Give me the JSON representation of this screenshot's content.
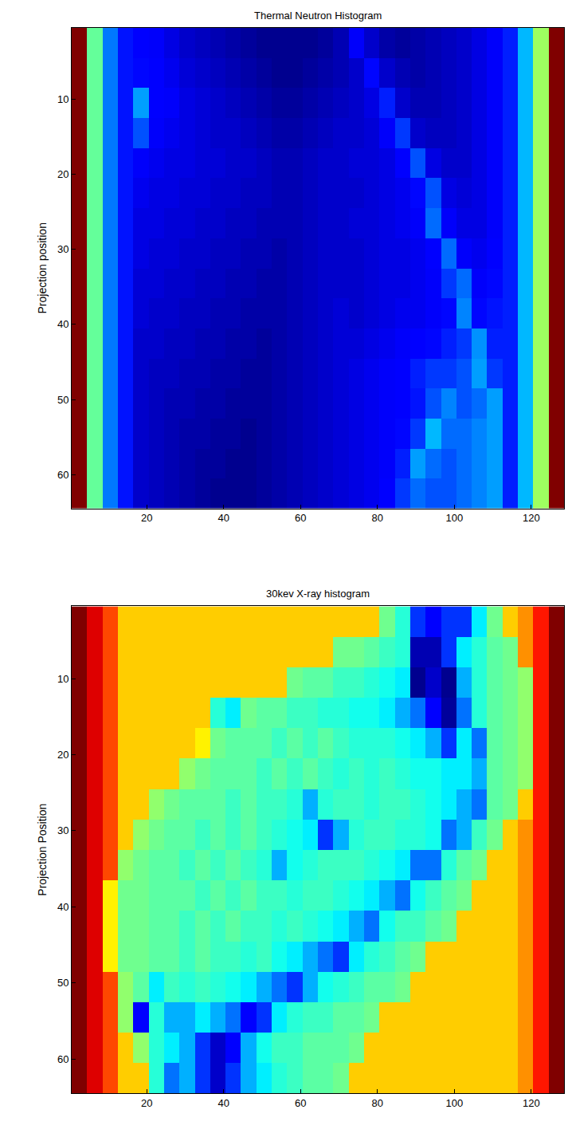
{
  "chart_data": [
    {
      "type": "heatmap",
      "title": "Thermal Neutron Histogram",
      "y_label": "Projection position",
      "color": "jet",
      "xlim": [
        0.5,
        128.5
      ],
      "xticks": [
        20,
        40,
        60,
        80,
        100,
        120
      ],
      "ylim": [
        64.5,
        0.5
      ],
      "yticks": [
        10,
        20,
        30,
        40,
        50,
        60
      ],
      "grid": false,
      "x": [
        2.5,
        6.5,
        10.5,
        14.5,
        18.5,
        22.5,
        26.5,
        30.5,
        34.5,
        38.5,
        42.5,
        46.5,
        50.5,
        54.5,
        58.5,
        62.5,
        66.5,
        70.5,
        74.5,
        78.5,
        82.5,
        86.5,
        90.5,
        94.5,
        98.5,
        102.5,
        106.5,
        110.5,
        114.5,
        118.5,
        122.5,
        126.5
      ],
      "y": [
        2.5,
        6.5,
        10.5,
        14.5,
        18.5,
        22.5,
        26.5,
        30.5,
        34.5,
        38.5,
        42.5,
        46.5,
        50.5,
        54.5,
        58.5,
        62.5
      ],
      "cells": [
        [
          0.9,
          0.45,
          0.25,
          0.17,
          0.15,
          0.14,
          0.12,
          0.1,
          0.09,
          0.08,
          0.07,
          0.06,
          0.05,
          0.05,
          0.05,
          0.05,
          0.06,
          0.08,
          0.14,
          0.1,
          0.07,
          0.06,
          0.07,
          0.08,
          0.09,
          0.1,
          0.12,
          0.14,
          0.18,
          0.3,
          0.5,
          0.9
        ],
        [
          0.9,
          0.45,
          0.25,
          0.17,
          0.16,
          0.15,
          0.13,
          0.11,
          0.1,
          0.09,
          0.08,
          0.07,
          0.06,
          0.05,
          0.05,
          0.06,
          0.07,
          0.08,
          0.1,
          0.16,
          0.1,
          0.08,
          0.07,
          0.08,
          0.09,
          0.1,
          0.12,
          0.14,
          0.18,
          0.3,
          0.5,
          0.9
        ],
        [
          0.9,
          0.45,
          0.25,
          0.17,
          0.28,
          0.15,
          0.14,
          0.12,
          0.11,
          0.1,
          0.09,
          0.08,
          0.07,
          0.06,
          0.06,
          0.07,
          0.08,
          0.09,
          0.1,
          0.12,
          0.18,
          0.1,
          0.08,
          0.08,
          0.09,
          0.1,
          0.12,
          0.14,
          0.18,
          0.3,
          0.5,
          0.9
        ],
        [
          0.9,
          0.45,
          0.25,
          0.17,
          0.22,
          0.14,
          0.13,
          0.12,
          0.11,
          0.1,
          0.1,
          0.09,
          0.08,
          0.07,
          0.07,
          0.08,
          0.09,
          0.1,
          0.1,
          0.11,
          0.14,
          0.2,
          0.1,
          0.09,
          0.09,
          0.1,
          0.12,
          0.14,
          0.18,
          0.3,
          0.5,
          0.9
        ],
        [
          0.9,
          0.45,
          0.25,
          0.17,
          0.14,
          0.13,
          0.12,
          0.12,
          0.11,
          0.11,
          0.1,
          0.1,
          0.09,
          0.08,
          0.08,
          0.09,
          0.1,
          0.1,
          0.11,
          0.11,
          0.12,
          0.15,
          0.22,
          0.12,
          0.1,
          0.1,
          0.12,
          0.14,
          0.18,
          0.3,
          0.5,
          0.9
        ],
        [
          0.9,
          0.45,
          0.25,
          0.17,
          0.13,
          0.12,
          0.12,
          0.11,
          0.11,
          0.1,
          0.1,
          0.09,
          0.09,
          0.08,
          0.08,
          0.09,
          0.1,
          0.1,
          0.1,
          0.11,
          0.12,
          0.13,
          0.16,
          0.22,
          0.12,
          0.11,
          0.12,
          0.14,
          0.18,
          0.3,
          0.5,
          0.9
        ],
        [
          0.9,
          0.45,
          0.25,
          0.17,
          0.12,
          0.12,
          0.11,
          0.11,
          0.1,
          0.1,
          0.09,
          0.09,
          0.08,
          0.08,
          0.08,
          0.09,
          0.1,
          0.1,
          0.11,
          0.11,
          0.12,
          0.13,
          0.14,
          0.24,
          0.14,
          0.12,
          0.12,
          0.14,
          0.18,
          0.3,
          0.5,
          0.9
        ],
        [
          0.9,
          0.45,
          0.25,
          0.17,
          0.12,
          0.11,
          0.11,
          0.1,
          0.1,
          0.09,
          0.09,
          0.08,
          0.08,
          0.07,
          0.08,
          0.09,
          0.1,
          0.1,
          0.1,
          0.11,
          0.12,
          0.12,
          0.13,
          0.15,
          0.24,
          0.14,
          0.13,
          0.15,
          0.18,
          0.3,
          0.5,
          0.9
        ],
        [
          0.9,
          0.45,
          0.25,
          0.17,
          0.11,
          0.11,
          0.1,
          0.1,
          0.09,
          0.09,
          0.08,
          0.08,
          0.07,
          0.07,
          0.08,
          0.09,
          0.1,
          0.1,
          0.1,
          0.11,
          0.12,
          0.12,
          0.13,
          0.14,
          0.2,
          0.24,
          0.14,
          0.16,
          0.18,
          0.3,
          0.5,
          0.9
        ],
        [
          0.9,
          0.45,
          0.25,
          0.17,
          0.11,
          0.1,
          0.1,
          0.09,
          0.09,
          0.08,
          0.08,
          0.07,
          0.07,
          0.07,
          0.08,
          0.09,
          0.1,
          0.11,
          0.1,
          0.11,
          0.12,
          0.13,
          0.13,
          0.14,
          0.16,
          0.26,
          0.16,
          0.17,
          0.18,
          0.3,
          0.5,
          0.9
        ],
        [
          0.9,
          0.45,
          0.25,
          0.17,
          0.1,
          0.1,
          0.09,
          0.09,
          0.08,
          0.08,
          0.07,
          0.07,
          0.06,
          0.07,
          0.08,
          0.09,
          0.1,
          0.11,
          0.11,
          0.12,
          0.13,
          0.14,
          0.15,
          0.16,
          0.18,
          0.2,
          0.27,
          0.18,
          0.18,
          0.3,
          0.5,
          0.9
        ],
        [
          0.9,
          0.45,
          0.25,
          0.17,
          0.1,
          0.09,
          0.09,
          0.08,
          0.08,
          0.07,
          0.07,
          0.06,
          0.06,
          0.07,
          0.08,
          0.09,
          0.1,
          0.11,
          0.12,
          0.13,
          0.14,
          0.15,
          0.18,
          0.2,
          0.2,
          0.22,
          0.28,
          0.2,
          0.18,
          0.3,
          0.5,
          0.9
        ],
        [
          0.9,
          0.45,
          0.25,
          0.17,
          0.1,
          0.09,
          0.08,
          0.08,
          0.07,
          0.07,
          0.06,
          0.06,
          0.06,
          0.07,
          0.08,
          0.09,
          0.1,
          0.11,
          0.12,
          0.13,
          0.14,
          0.15,
          0.17,
          0.22,
          0.26,
          0.22,
          0.24,
          0.28,
          0.18,
          0.3,
          0.5,
          0.9
        ],
        [
          0.9,
          0.45,
          0.25,
          0.17,
          0.1,
          0.09,
          0.08,
          0.07,
          0.07,
          0.06,
          0.06,
          0.05,
          0.06,
          0.07,
          0.08,
          0.09,
          0.1,
          0.11,
          0.12,
          0.13,
          0.14,
          0.16,
          0.2,
          0.3,
          0.24,
          0.24,
          0.26,
          0.28,
          0.18,
          0.3,
          0.5,
          0.9
        ],
        [
          0.9,
          0.45,
          0.25,
          0.17,
          0.1,
          0.09,
          0.08,
          0.07,
          0.06,
          0.06,
          0.05,
          0.05,
          0.06,
          0.07,
          0.08,
          0.09,
          0.1,
          0.11,
          0.12,
          0.13,
          0.14,
          0.18,
          0.28,
          0.24,
          0.22,
          0.24,
          0.26,
          0.28,
          0.18,
          0.3,
          0.5,
          0.9
        ],
        [
          0.9,
          0.45,
          0.25,
          0.17,
          0.1,
          0.09,
          0.08,
          0.07,
          0.06,
          0.05,
          0.05,
          0.05,
          0.06,
          0.07,
          0.08,
          0.09,
          0.1,
          0.11,
          0.12,
          0.13,
          0.15,
          0.2,
          0.24,
          0.22,
          0.22,
          0.24,
          0.26,
          0.28,
          0.18,
          0.3,
          0.5,
          0.9
        ]
      ]
    },
    {
      "type": "heatmap",
      "title": "30kev X-ray histogram",
      "y_label": "Projection Position",
      "color": "jet",
      "xlim": [
        0.5,
        128.5
      ],
      "xticks": [
        20,
        40,
        60,
        80,
        100,
        120
      ],
      "ylim": [
        64.5,
        0.5
      ],
      "yticks": [
        10,
        20,
        30,
        40,
        50,
        60
      ],
      "grid": false,
      "x": [
        2.5,
        6.5,
        10.5,
        14.5,
        18.5,
        22.5,
        26.5,
        30.5,
        34.5,
        38.5,
        42.5,
        46.5,
        50.5,
        54.5,
        58.5,
        62.5,
        66.5,
        70.5,
        74.5,
        78.5,
        82.5,
        86.5,
        90.5,
        94.5,
        98.5,
        102.5,
        106.5,
        110.5,
        114.5,
        118.5,
        122.5,
        126.5
      ],
      "y": [
        2.5,
        6.5,
        10.5,
        14.5,
        18.5,
        22.5,
        26.5,
        30.5,
        34.5,
        38.5,
        42.5,
        46.5,
        50.5,
        54.5,
        58.5,
        62.5
      ],
      "cells": [
        [
          0.92,
          0.83,
          0.74,
          0.63,
          0.63,
          0.63,
          0.63,
          0.63,
          0.63,
          0.63,
          0.63,
          0.63,
          0.63,
          0.63,
          0.63,
          0.63,
          0.63,
          0.63,
          0.63,
          0.63,
          0.47,
          0.4,
          0.2,
          0.15,
          0.2,
          0.2,
          0.35,
          0.47,
          0.63,
          0.68,
          0.78,
          0.92
        ],
        [
          0.92,
          0.83,
          0.74,
          0.63,
          0.63,
          0.63,
          0.63,
          0.63,
          0.63,
          0.63,
          0.63,
          0.63,
          0.63,
          0.63,
          0.63,
          0.63,
          0.63,
          0.47,
          0.47,
          0.45,
          0.42,
          0.4,
          0.08,
          0.08,
          0.2,
          0.35,
          0.4,
          0.45,
          0.47,
          0.68,
          0.78,
          0.92
        ],
        [
          0.92,
          0.83,
          0.74,
          0.63,
          0.63,
          0.63,
          0.63,
          0.63,
          0.63,
          0.63,
          0.63,
          0.63,
          0.63,
          0.63,
          0.47,
          0.45,
          0.45,
          0.42,
          0.42,
          0.4,
          0.38,
          0.35,
          0.05,
          0.1,
          0.05,
          0.3,
          0.4,
          0.45,
          0.47,
          0.5,
          0.78,
          0.92
        ],
        [
          0.92,
          0.83,
          0.74,
          0.63,
          0.63,
          0.63,
          0.63,
          0.63,
          0.63,
          0.4,
          0.35,
          0.47,
          0.45,
          0.45,
          0.42,
          0.42,
          0.4,
          0.4,
          0.38,
          0.38,
          0.35,
          0.3,
          0.25,
          0.15,
          0.06,
          0.25,
          0.4,
          0.45,
          0.47,
          0.5,
          0.78,
          0.92
        ],
        [
          0.92,
          0.83,
          0.74,
          0.63,
          0.63,
          0.63,
          0.63,
          0.63,
          0.6,
          0.47,
          0.45,
          0.45,
          0.45,
          0.42,
          0.45,
          0.42,
          0.45,
          0.42,
          0.4,
          0.4,
          0.4,
          0.38,
          0.35,
          0.3,
          0.2,
          0.35,
          0.25,
          0.45,
          0.47,
          0.5,
          0.78,
          0.92
        ],
        [
          0.92,
          0.83,
          0.74,
          0.63,
          0.63,
          0.63,
          0.63,
          0.5,
          0.47,
          0.45,
          0.45,
          0.45,
          0.42,
          0.45,
          0.42,
          0.45,
          0.42,
          0.4,
          0.42,
          0.4,
          0.42,
          0.4,
          0.38,
          0.38,
          0.35,
          0.35,
          0.3,
          0.45,
          0.47,
          0.5,
          0.78,
          0.92
        ],
        [
          0.92,
          0.83,
          0.74,
          0.63,
          0.63,
          0.5,
          0.47,
          0.45,
          0.45,
          0.45,
          0.42,
          0.45,
          0.42,
          0.42,
          0.4,
          0.3,
          0.4,
          0.42,
          0.42,
          0.4,
          0.42,
          0.42,
          0.4,
          0.38,
          0.35,
          0.3,
          0.25,
          0.45,
          0.47,
          0.63,
          0.78,
          0.92
        ],
        [
          0.92,
          0.83,
          0.74,
          0.63,
          0.5,
          0.47,
          0.45,
          0.45,
          0.42,
          0.45,
          0.42,
          0.45,
          0.42,
          0.4,
          0.38,
          0.35,
          0.2,
          0.3,
          0.4,
          0.42,
          0.42,
          0.4,
          0.4,
          0.38,
          0.25,
          0.3,
          0.42,
          0.47,
          0.63,
          0.68,
          0.78,
          0.92
        ],
        [
          0.92,
          0.83,
          0.74,
          0.5,
          0.47,
          0.45,
          0.45,
          0.42,
          0.45,
          0.42,
          0.45,
          0.42,
          0.4,
          0.3,
          0.38,
          0.4,
          0.42,
          0.42,
          0.42,
          0.4,
          0.38,
          0.35,
          0.25,
          0.25,
          0.4,
          0.45,
          0.47,
          0.63,
          0.63,
          0.68,
          0.78,
          0.92
        ],
        [
          0.92,
          0.83,
          0.6,
          0.47,
          0.47,
          0.45,
          0.45,
          0.45,
          0.42,
          0.45,
          0.42,
          0.45,
          0.42,
          0.42,
          0.4,
          0.42,
          0.42,
          0.4,
          0.38,
          0.35,
          0.3,
          0.25,
          0.38,
          0.42,
          0.45,
          0.47,
          0.63,
          0.63,
          0.63,
          0.68,
          0.78,
          0.92
        ],
        [
          0.92,
          0.83,
          0.6,
          0.47,
          0.47,
          0.45,
          0.45,
          0.42,
          0.45,
          0.42,
          0.45,
          0.42,
          0.42,
          0.4,
          0.42,
          0.4,
          0.38,
          0.35,
          0.3,
          0.25,
          0.38,
          0.42,
          0.42,
          0.45,
          0.47,
          0.63,
          0.63,
          0.63,
          0.63,
          0.68,
          0.78,
          0.92
        ],
        [
          0.92,
          0.83,
          0.6,
          0.47,
          0.47,
          0.45,
          0.45,
          0.42,
          0.45,
          0.42,
          0.42,
          0.4,
          0.42,
          0.38,
          0.35,
          0.3,
          0.25,
          0.2,
          0.35,
          0.4,
          0.42,
          0.45,
          0.47,
          0.63,
          0.63,
          0.63,
          0.63,
          0.63,
          0.63,
          0.68,
          0.78,
          0.92
        ],
        [
          0.92,
          0.83,
          0.74,
          0.5,
          0.45,
          0.35,
          0.42,
          0.4,
          0.42,
          0.4,
          0.38,
          0.35,
          0.3,
          0.25,
          0.2,
          0.3,
          0.38,
          0.4,
          0.42,
          0.45,
          0.45,
          0.47,
          0.63,
          0.63,
          0.63,
          0.63,
          0.63,
          0.63,
          0.63,
          0.68,
          0.78,
          0.92
        ],
        [
          0.92,
          0.83,
          0.74,
          0.5,
          0.15,
          0.4,
          0.3,
          0.3,
          0.35,
          0.3,
          0.25,
          0.15,
          0.2,
          0.35,
          0.4,
          0.42,
          0.42,
          0.45,
          0.45,
          0.47,
          0.63,
          0.63,
          0.63,
          0.63,
          0.63,
          0.63,
          0.63,
          0.63,
          0.63,
          0.68,
          0.78,
          0.92
        ],
        [
          0.92,
          0.83,
          0.74,
          0.63,
          0.5,
          0.4,
          0.35,
          0.3,
          0.2,
          0.1,
          0.15,
          0.3,
          0.38,
          0.42,
          0.42,
          0.45,
          0.45,
          0.45,
          0.47,
          0.63,
          0.63,
          0.63,
          0.63,
          0.63,
          0.63,
          0.63,
          0.63,
          0.63,
          0.63,
          0.68,
          0.78,
          0.92
        ],
        [
          0.92,
          0.83,
          0.74,
          0.63,
          0.63,
          0.4,
          0.25,
          0.3,
          0.2,
          0.1,
          0.2,
          0.3,
          0.35,
          0.4,
          0.42,
          0.45,
          0.45,
          0.47,
          0.63,
          0.63,
          0.63,
          0.63,
          0.63,
          0.63,
          0.63,
          0.63,
          0.63,
          0.63,
          0.63,
          0.68,
          0.78,
          0.92
        ]
      ]
    }
  ]
}
